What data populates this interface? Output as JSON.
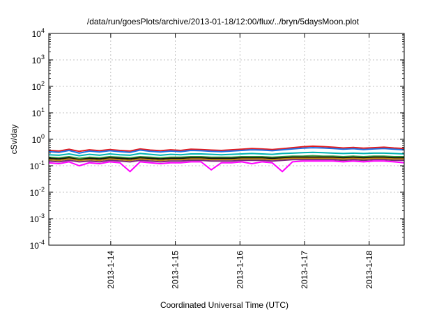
{
  "chart_data": {
    "type": "line",
    "title": "/data/run/goesPlots/archive/2013-01-18/12:00/flux/../bryn/5daysMoon.plot",
    "xlabel": "Coordinated Universal Time (UTC)",
    "ylabel": "cSv/day",
    "y_scale": "log",
    "ylim": [
      0.0001,
      10000
    ],
    "xlim": [
      "2013-01-13T01:00",
      "2013-01-18T13:00"
    ],
    "grid": true,
    "y_ticks": [
      {
        "value": 0.0001,
        "base": "10",
        "exp": "-4"
      },
      {
        "value": 0.001,
        "base": "10",
        "exp": "-3"
      },
      {
        "value": 0.01,
        "base": "10",
        "exp": "-2"
      },
      {
        "value": 0.1,
        "base": "10",
        "exp": "-1"
      },
      {
        "value": 1,
        "base": "10",
        "exp": "0"
      },
      {
        "value": 10,
        "base": "10",
        "exp": "1"
      },
      {
        "value": 100,
        "base": "10",
        "exp": "2"
      },
      {
        "value": 1000,
        "base": "10",
        "exp": "3"
      },
      {
        "value": 10000,
        "base": "10",
        "exp": "4"
      }
    ],
    "x_ticks": [
      "2013-1-14",
      "2013-1-15",
      "2013-1-16",
      "2013-1-17",
      "2013-1-18"
    ],
    "x_tick_dates": [
      "2013-01-14T00:00",
      "2013-01-15T00:00",
      "2013-01-16T00:00",
      "2013-01-17T00:00",
      "2013-01-18T00:00"
    ],
    "series": [
      {
        "color": "#e41a1c",
        "values": [
          0.38,
          0.36,
          0.42,
          0.35,
          0.4,
          0.37,
          0.41,
          0.38,
          0.36,
          0.43,
          0.39,
          0.37,
          0.4,
          0.38,
          0.42,
          0.41,
          0.39,
          0.38,
          0.4,
          0.42,
          0.45,
          0.43,
          0.41,
          0.44,
          0.48,
          0.52,
          0.55,
          0.53,
          0.5,
          0.47,
          0.49,
          0.46,
          0.48,
          0.5,
          0.47,
          0.45
        ]
      },
      {
        "color": "#1f6fe5",
        "values": [
          0.34,
          0.32,
          0.38,
          0.3,
          0.36,
          0.33,
          0.37,
          0.34,
          0.32,
          0.39,
          0.35,
          0.33,
          0.36,
          0.34,
          0.38,
          0.37,
          0.35,
          0.34,
          0.36,
          0.38,
          0.4,
          0.39,
          0.37,
          0.4,
          0.43,
          0.46,
          0.48,
          0.47,
          0.45,
          0.42,
          0.44,
          0.41,
          0.43,
          0.45,
          0.42,
          0.4
        ]
      },
      {
        "color": "#00b3b3",
        "values": [
          0.26,
          0.25,
          0.28,
          0.24,
          0.27,
          0.25,
          0.28,
          0.26,
          0.25,
          0.29,
          0.27,
          0.25,
          0.27,
          0.26,
          0.28,
          0.28,
          0.27,
          0.26,
          0.27,
          0.28,
          0.29,
          0.28,
          0.27,
          0.29,
          0.3,
          0.31,
          0.32,
          0.31,
          0.3,
          0.29,
          0.3,
          0.29,
          0.3,
          0.3,
          0.29,
          0.28
        ]
      },
      {
        "color": "#3a9a3a",
        "values": [
          0.21,
          0.2,
          0.22,
          0.19,
          0.21,
          0.2,
          0.22,
          0.21,
          0.2,
          0.22,
          0.21,
          0.2,
          0.21,
          0.21,
          0.22,
          0.22,
          0.21,
          0.21,
          0.21,
          0.22,
          0.22,
          0.22,
          0.21,
          0.22,
          0.23,
          0.23,
          0.24,
          0.23,
          0.23,
          0.22,
          0.23,
          0.22,
          0.23,
          0.23,
          0.22,
          0.22
        ]
      },
      {
        "color": "#111111",
        "values": [
          0.19,
          0.18,
          0.2,
          0.17,
          0.19,
          0.18,
          0.2,
          0.19,
          0.18,
          0.2,
          0.19,
          0.18,
          0.19,
          0.19,
          0.2,
          0.2,
          0.19,
          0.19,
          0.19,
          0.2,
          0.2,
          0.2,
          0.19,
          0.2,
          0.21,
          0.21,
          0.21,
          0.21,
          0.21,
          0.2,
          0.21,
          0.2,
          0.21,
          0.21,
          0.2,
          0.2
        ]
      },
      {
        "color": "#b8860b",
        "values": [
          0.17,
          0.16,
          0.18,
          0.16,
          0.17,
          0.16,
          0.18,
          0.17,
          0.16,
          0.18,
          0.17,
          0.16,
          0.17,
          0.17,
          0.18,
          0.18,
          0.17,
          0.17,
          0.17,
          0.18,
          0.18,
          0.18,
          0.17,
          0.18,
          0.19,
          0.19,
          0.19,
          0.19,
          0.19,
          0.18,
          0.19,
          0.18,
          0.19,
          0.19,
          0.18,
          0.18
        ]
      },
      {
        "color": "#7b2a7b",
        "values": [
          0.15,
          0.14,
          0.16,
          0.14,
          0.15,
          0.14,
          0.16,
          0.15,
          0.14,
          0.16,
          0.15,
          0.14,
          0.15,
          0.15,
          0.16,
          0.16,
          0.15,
          0.15,
          0.15,
          0.16,
          0.16,
          0.16,
          0.15,
          0.16,
          0.17,
          0.17,
          0.17,
          0.17,
          0.17,
          0.16,
          0.17,
          0.16,
          0.17,
          0.17,
          0.16,
          0.16
        ]
      },
      {
        "color": "#ff00ff",
        "values": [
          0.13,
          0.12,
          0.14,
          0.1,
          0.13,
          0.12,
          0.14,
          0.13,
          0.06,
          0.14,
          0.13,
          0.12,
          0.13,
          0.13,
          0.14,
          0.14,
          0.07,
          0.13,
          0.13,
          0.14,
          0.12,
          0.14,
          0.13,
          0.06,
          0.14,
          0.15,
          0.15,
          0.15,
          0.15,
          0.14,
          0.15,
          0.14,
          0.15,
          0.15,
          0.14,
          0.13
        ]
      }
    ]
  }
}
